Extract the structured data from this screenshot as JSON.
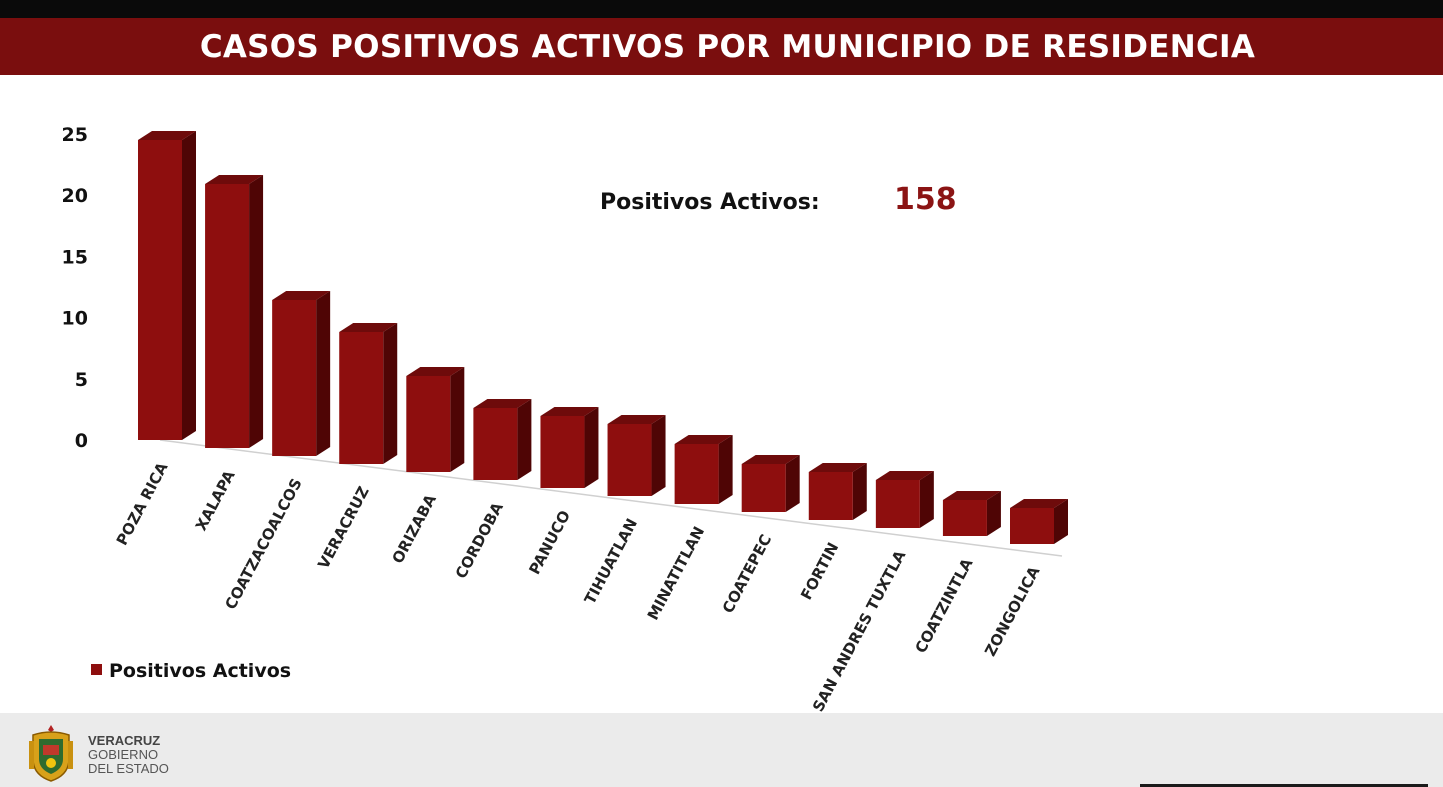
{
  "header": {
    "title": "CASOS POSITIVOS ACTIVOS POR MUNICIPIO DE RESIDENCIA"
  },
  "summary": {
    "label": "Positivos Activos:",
    "value": "158"
  },
  "chart_data": {
    "type": "bar",
    "title": "CASOS POSITIVOS ACTIVOS POR MUNICIPIO DE RESIDENCIA",
    "categories": [
      "POZA RICA",
      "XALAPA",
      "COATZACOALCOS",
      "VERACRUZ",
      "ORIZABA",
      "CORDOBA",
      "PANUCO",
      "TIHUATLAN",
      "MINATITLAN",
      "COATEPEC",
      "FORTIN",
      "SAN ANDRES TUXTLA",
      "COATZINTLA",
      "ZONGOLICA"
    ],
    "series": [
      {
        "name": "Positivos Activos",
        "values": [
          25,
          22,
          13,
          11,
          8,
          6,
          6,
          6,
          5,
          4,
          4,
          4,
          3,
          3
        ]
      }
    ],
    "yticks": [
      "0",
      "5",
      "10",
      "15",
      "20",
      "25"
    ],
    "ylim": [
      0,
      25
    ],
    "legend": "bottom-left",
    "grid": false,
    "three_d": true
  },
  "colors": {
    "bar_front": "#8e0e0e",
    "bar_side": "#4f0505",
    "bar_top": "#6e0b0b",
    "header_bg": "#7a0e0e",
    "value_text": "#8b1414"
  },
  "footer": {
    "brand_line1": "VERACRUZ",
    "brand_line2": "GOBIERNO",
    "brand_line3": "DEL ESTADO",
    "logo_icon": "coat-of-arms-icon"
  }
}
